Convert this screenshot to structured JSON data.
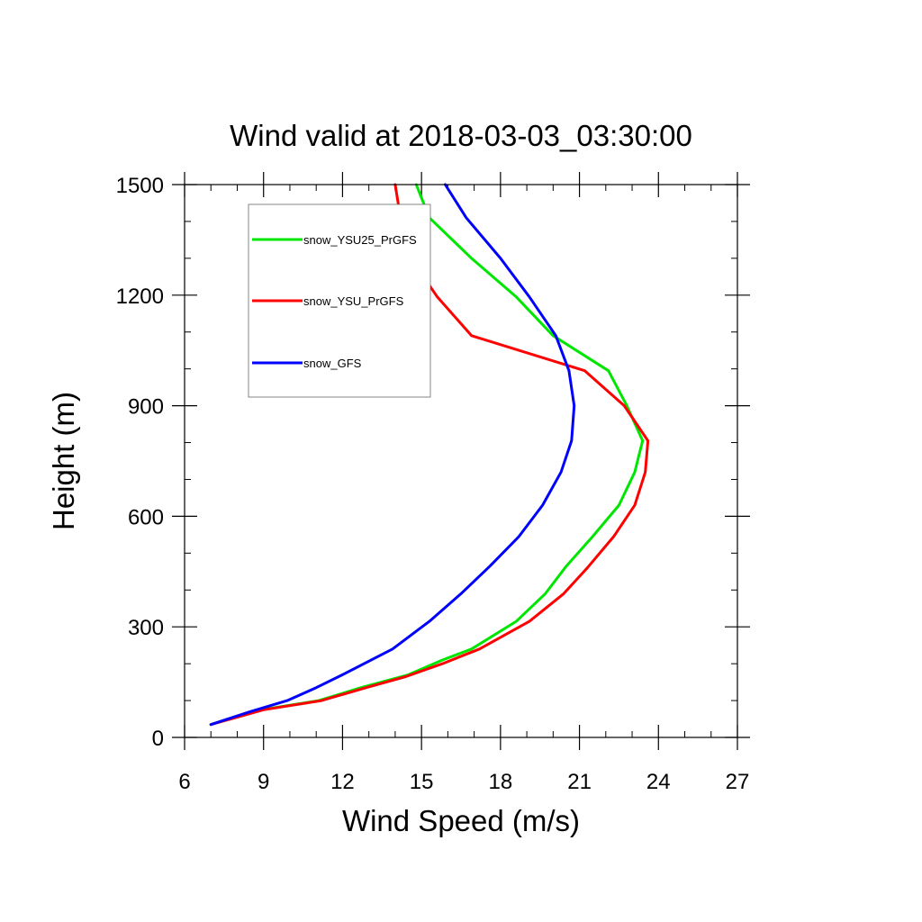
{
  "chart_data": {
    "type": "line",
    "title": "Wind valid at 2018-03-03_03:30:00",
    "xlabel": "Wind Speed (m/s)",
    "ylabel": "Height (m)",
    "xlim": [
      6,
      27
    ],
    "ylim": [
      0,
      1500
    ],
    "x_ticks": [
      6,
      9,
      12,
      15,
      18,
      21,
      24,
      27
    ],
    "y_ticks": [
      0,
      300,
      600,
      900,
      1200,
      1500
    ],
    "x_tick_labels": [
      "6",
      "9",
      "12",
      "15",
      "18",
      "21",
      "24",
      "27"
    ],
    "y_tick_labels": [
      "0",
      "300",
      "600",
      "900",
      "1200",
      "1500"
    ],
    "x_minor_step": 1,
    "y_minor_step": 100,
    "grid": false,
    "legend_position": "top-left",
    "series": [
      {
        "name": "snow_YSU25_PrGFS",
        "color": "#00e600",
        "points": [
          [
            7.0,
            35
          ],
          [
            8.9,
            75
          ],
          [
            11.1,
            100
          ],
          [
            12.7,
            135
          ],
          [
            14.5,
            170
          ],
          [
            15.8,
            210
          ],
          [
            16.9,
            240
          ],
          [
            18.6,
            315
          ],
          [
            19.7,
            390
          ],
          [
            20.5,
            465
          ],
          [
            21.5,
            545
          ],
          [
            22.5,
            630
          ],
          [
            23.1,
            720
          ],
          [
            23.4,
            805
          ],
          [
            22.8,
            900
          ],
          [
            22.1,
            995
          ],
          [
            20.0,
            1090
          ],
          [
            18.6,
            1195
          ],
          [
            16.9,
            1300
          ],
          [
            15.3,
            1410
          ],
          [
            14.8,
            1500
          ]
        ]
      },
      {
        "name": "snow_YSU_PrGFS",
        "color": "#ff0000",
        "points": [
          [
            7.0,
            35
          ],
          [
            9.0,
            75
          ],
          [
            11.2,
            100
          ],
          [
            12.9,
            135
          ],
          [
            14.4,
            165
          ],
          [
            15.8,
            200
          ],
          [
            17.2,
            240
          ],
          [
            19.1,
            315
          ],
          [
            20.4,
            390
          ],
          [
            21.3,
            460
          ],
          [
            22.3,
            545
          ],
          [
            23.1,
            630
          ],
          [
            23.5,
            720
          ],
          [
            23.6,
            805
          ],
          [
            22.7,
            900
          ],
          [
            21.2,
            995
          ],
          [
            16.9,
            1090
          ],
          [
            15.6,
            1195
          ],
          [
            14.6,
            1300
          ],
          [
            14.2,
            1410
          ],
          [
            14.0,
            1500
          ]
        ]
      },
      {
        "name": "snow_GFS",
        "color": "#0000ff",
        "points": [
          [
            7.0,
            35
          ],
          [
            8.5,
            70
          ],
          [
            9.9,
            100
          ],
          [
            11.0,
            135
          ],
          [
            12.0,
            170
          ],
          [
            13.9,
            240
          ],
          [
            15.3,
            315
          ],
          [
            16.5,
            390
          ],
          [
            17.6,
            465
          ],
          [
            18.7,
            545
          ],
          [
            19.6,
            630
          ],
          [
            20.3,
            720
          ],
          [
            20.7,
            805
          ],
          [
            20.8,
            900
          ],
          [
            20.6,
            995
          ],
          [
            20.1,
            1090
          ],
          [
            19.1,
            1195
          ],
          [
            18.0,
            1300
          ],
          [
            16.7,
            1410
          ],
          [
            15.9,
            1500
          ]
        ]
      }
    ]
  }
}
